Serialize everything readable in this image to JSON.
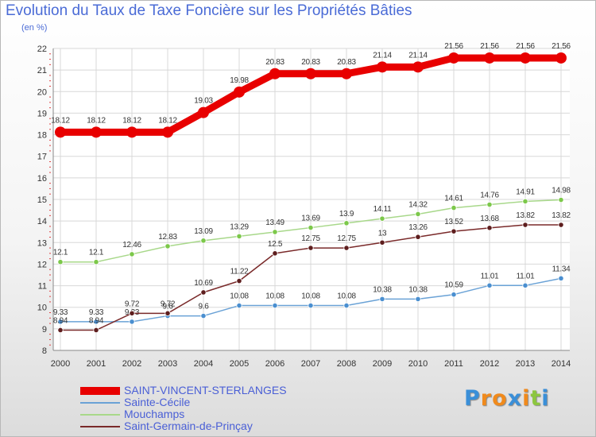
{
  "header": {
    "title": "Evolution du Taux de Taxe Foncière sur les Propriétés Bâties",
    "subtitle": "(en %)"
  },
  "logo": {
    "letters": [
      "P",
      "r",
      "o",
      "x",
      "i",
      "t",
      "i"
    ],
    "colors": [
      "#3a8fd8",
      "#f08a1c",
      "#f08a1c",
      "#3a8fd8",
      "#f08a1c",
      "#8cc63f",
      "#3a8fd8"
    ]
  },
  "chart_data": {
    "type": "line",
    "x": [
      "2000",
      "2001",
      "2002",
      "2003",
      "2004",
      "2005",
      "2006",
      "2007",
      "2008",
      "2009",
      "2010",
      "2011",
      "2012",
      "2013",
      "2014"
    ],
    "ylim": [
      8,
      22
    ],
    "yticks": [
      8,
      9,
      10,
      11,
      12,
      13,
      14,
      15,
      16,
      17,
      18,
      19,
      20,
      21,
      22
    ],
    "grid": true,
    "legend_position": "bottom-left",
    "series": [
      {
        "name": "SAINT-VINCENT-STERLANGES",
        "color": "#e80000",
        "thick": true,
        "values": [
          18.12,
          18.12,
          18.12,
          18.12,
          19.03,
          19.98,
          20.83,
          20.83,
          20.83,
          21.14,
          21.14,
          21.56,
          21.56,
          21.56,
          21.56
        ],
        "labels": [
          "18.12",
          "18.12",
          "18.12",
          "18.12",
          "19.03",
          "19.98",
          "20.83",
          "20.83",
          "20.83",
          "21.14",
          "21.14",
          "21.56",
          "21.56",
          "21.56",
          "21.56"
        ]
      },
      {
        "name": "Sainte-Cécile",
        "color": "#6aa2d6",
        "marker": "#4a8fd0",
        "values": [
          9.33,
          9.33,
          9.33,
          9.6,
          9.6,
          10.08,
          10.08,
          10.08,
          10.08,
          10.38,
          10.38,
          10.59,
          11.01,
          11.01,
          11.34
        ],
        "labels": [
          "9.33",
          "9.33",
          "9.33",
          "9.6",
          "9.6",
          "10.08",
          "10.08",
          "10.08",
          "10.08",
          "10.38",
          "10.38",
          "10.59",
          "11.01",
          "11.01",
          "11.34"
        ]
      },
      {
        "name": "Mouchamps",
        "color": "#a8d88a",
        "marker": "#7cc84a",
        "values": [
          12.1,
          12.1,
          12.46,
          12.83,
          13.09,
          13.29,
          13.49,
          13.69,
          13.9,
          14.11,
          14.32,
          14.61,
          14.76,
          14.91,
          14.98
        ],
        "labels": [
          "12.1",
          "12.1",
          "12.46",
          "12.83",
          "13.09",
          "13.29",
          "13.49",
          "13.69",
          "13.9",
          "14.11",
          "14.32",
          "14.61",
          "14.76",
          "14.91",
          "14.98"
        ]
      },
      {
        "name": "Saint-Germain-de-Prinçay",
        "color": "#7a2a2a",
        "marker": "#5e1e1e",
        "values": [
          8.94,
          8.94,
          9.72,
          9.72,
          10.69,
          11.22,
          12.5,
          12.75,
          12.75,
          13.0,
          13.26,
          13.52,
          13.68,
          13.82,
          13.82
        ],
        "labels": [
          "8.94",
          "8.94",
          "9.72",
          "9.72",
          "10.69",
          "11.22",
          "12.5",
          "12.75",
          "12.75",
          "13",
          "13.26",
          "13.52",
          "13.68",
          "13.82",
          "13.82"
        ]
      }
    ]
  }
}
